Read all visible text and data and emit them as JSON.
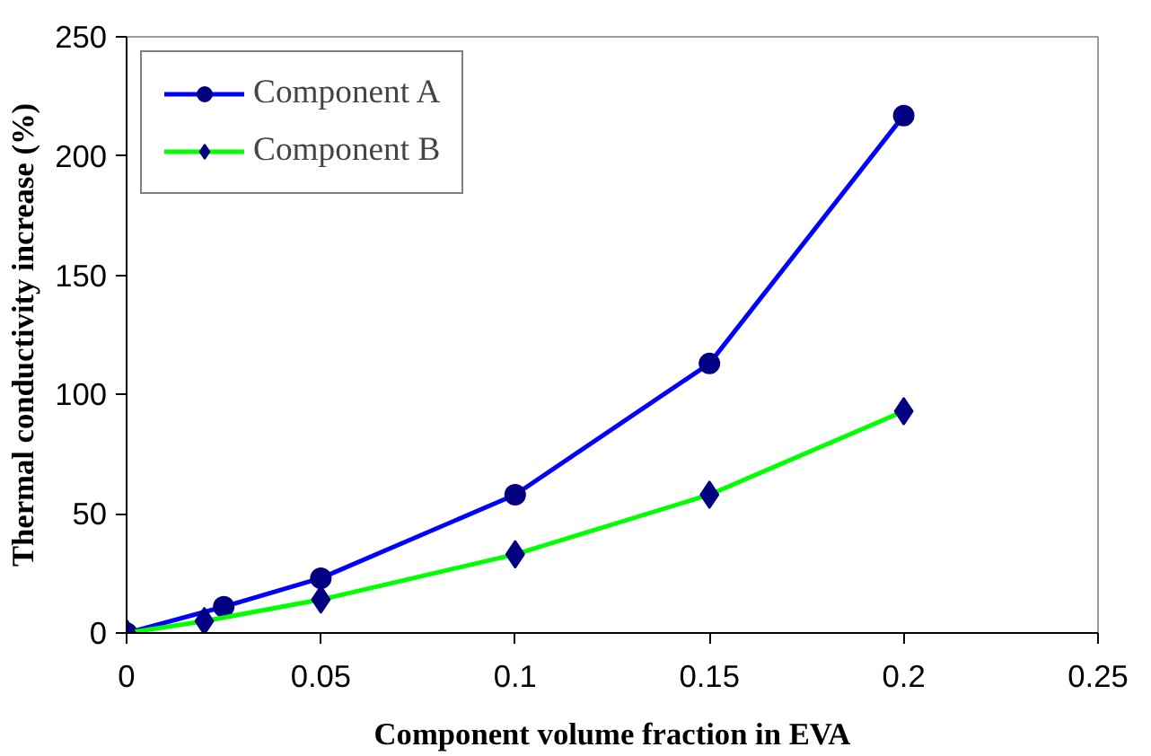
{
  "chart_data": {
    "type": "line",
    "xlabel": "Component volume fraction in EVA",
    "ylabel": "Thermal conductivity increase (%)",
    "xlim": [
      0,
      0.25
    ],
    "xticks": [
      0,
      0.05,
      0.1,
      0.15,
      0.2,
      0.25
    ],
    "ylim": [
      0,
      250
    ],
    "yticks": [
      0,
      50,
      100,
      150,
      200,
      250
    ],
    "grid": false,
    "legend": "top left",
    "line_style": "solid",
    "series": [
      {
        "name": "Component A",
        "color": "#0000ff",
        "marker": "circle",
        "x": [
          0,
          0.025,
          0.05,
          0.1,
          0.15,
          0.2
        ],
        "values": [
          0,
          11,
          23,
          58,
          113,
          217
        ]
      },
      {
        "name": "Component B",
        "color": "#00ff00",
        "marker": "diamond",
        "x": [
          0,
          0.02,
          0.05,
          0.1,
          0.15,
          0.2
        ],
        "values": [
          0,
          5,
          14,
          33,
          58,
          93
        ]
      }
    ]
  }
}
